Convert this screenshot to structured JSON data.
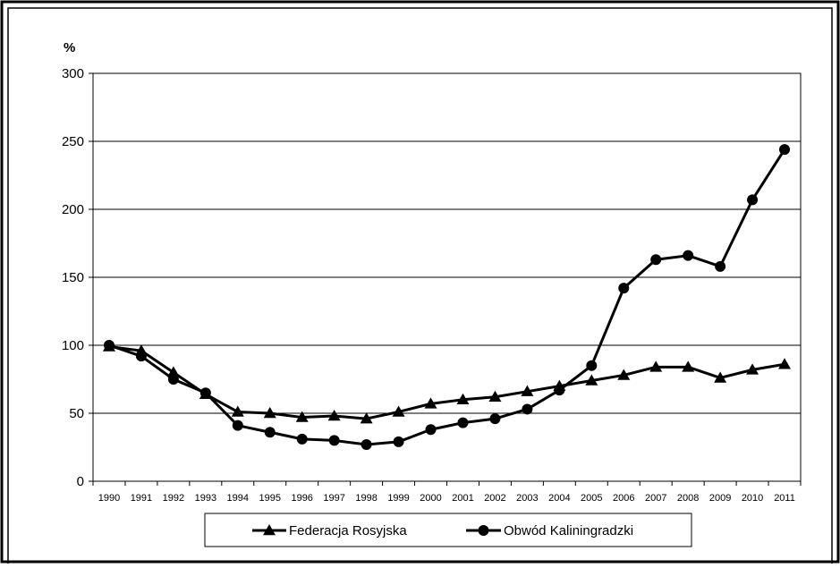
{
  "chart_data": {
    "type": "line",
    "title": "",
    "ylabel": "%",
    "xlabel": "",
    "ylim": [
      0,
      300
    ],
    "yticks": [
      0,
      50,
      100,
      150,
      200,
      250,
      300
    ],
    "grid": true,
    "legend_position": "bottom",
    "categories": [
      "1990",
      "1991",
      "1992",
      "1993",
      "1994",
      "1995",
      "1996",
      "1997",
      "1998",
      "1999",
      "2000",
      "2001",
      "2002",
      "2003",
      "2004",
      "2005",
      "2006",
      "2007",
      "2008",
      "2009",
      "2010",
      "2011"
    ],
    "series": [
      {
        "name": "Federacja Rosyjska",
        "marker": "triangle",
        "color": "#000000",
        "values": [
          99,
          96,
          80,
          64,
          51,
          50,
          47,
          48,
          46,
          51,
          57,
          60,
          62,
          66,
          70,
          74,
          78,
          84,
          84,
          76,
          82,
          86
        ]
      },
      {
        "name": "Obwód Kaliningradzki",
        "marker": "circle",
        "color": "#000000",
        "values": [
          100,
          92,
          75,
          65,
          41,
          36,
          31,
          30,
          27,
          29,
          38,
          43,
          46,
          53,
          67,
          85,
          142,
          163,
          166,
          158,
          207,
          244
        ]
      }
    ]
  }
}
